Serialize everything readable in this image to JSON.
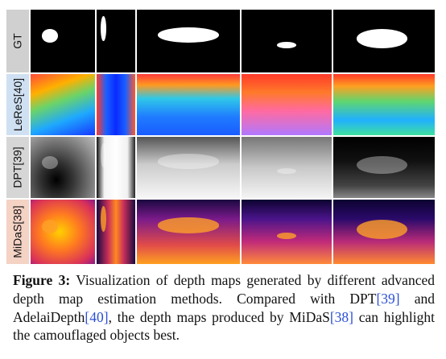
{
  "figure": {
    "row_labels": [
      "GT",
      "LeReS[40]",
      "DPT[39]",
      "MiDaS[38]"
    ]
  },
  "caption": {
    "label": "Figure 3:",
    "segments": [
      {
        "text": " Visualization of depth maps generated by different advanced depth map estimation methods. Compared with DPT",
        "cite": false
      },
      {
        "text": "[39]",
        "cite": true
      },
      {
        "text": " and AdelaiDepth",
        "cite": false
      },
      {
        "text": "[40]",
        "cite": true
      },
      {
        "text": ", the depth maps produced by MiDaS",
        "cite": false
      },
      {
        "text": "[38]",
        "cite": true
      },
      {
        "text": " can highlight the camouflaged objects best.",
        "cite": false
      }
    ]
  }
}
